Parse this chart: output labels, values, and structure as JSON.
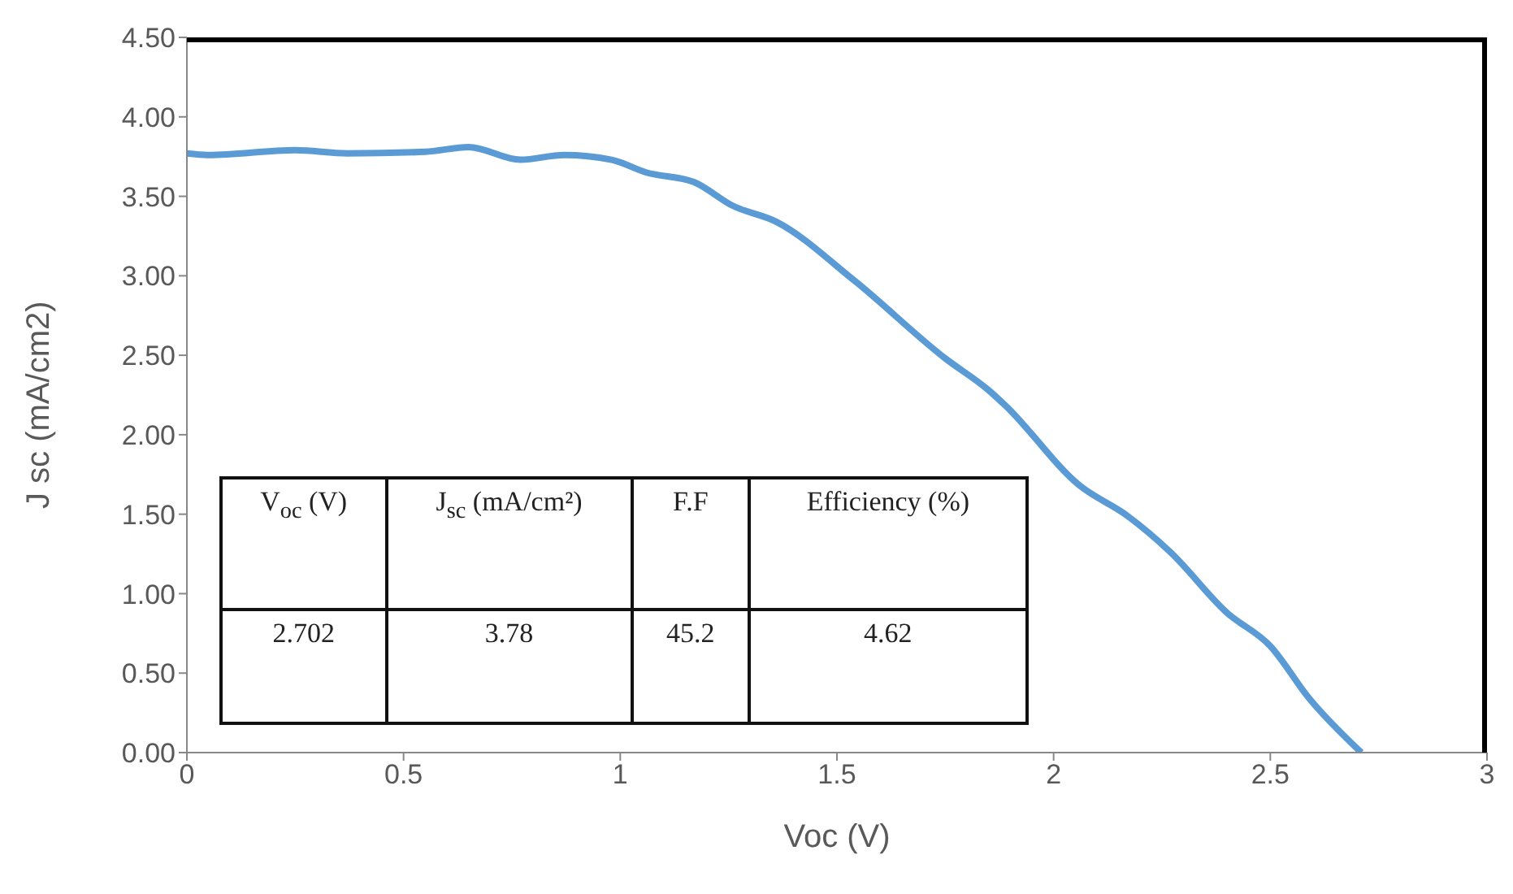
{
  "chart_data": {
    "type": "line",
    "xlabel": "Voc (V)",
    "ylabel": "J sc (mA/cm2)",
    "x": [
      0,
      0.05,
      0.25,
      0.37,
      0.55,
      0.65,
      0.77,
      0.87,
      0.98,
      1.06,
      1.17,
      1.26,
      1.36,
      1.54,
      1.75,
      1.85,
      1.89,
      2.06,
      2.17,
      2.27,
      2.4,
      2.5,
      2.59,
      2.71
    ],
    "series": [
      {
        "color": "#5b9bd5",
        "values": [
          3.77,
          3.76,
          3.79,
          3.77,
          3.78,
          3.81,
          3.73,
          3.76,
          3.73,
          3.65,
          3.59,
          3.44,
          3.34,
          2.97,
          2.48,
          2.28,
          2.18,
          1.68,
          1.49,
          1.26,
          0.88,
          0.67,
          0.34,
          0
        ]
      }
    ],
    "xlim": [
      0,
      3
    ],
    "xticks": [
      0,
      0.5,
      1,
      1.5,
      2,
      2.5,
      3
    ],
    "ylim": [
      0,
      4.5
    ],
    "yticks": [
      {
        "value": 0,
        "label": "0.00"
      },
      {
        "value": 0.5,
        "label": "0.50"
      },
      {
        "value": 1,
        "label": "1.00"
      },
      {
        "value": 1.5,
        "label": "1.50"
      },
      {
        "value": 2,
        "label": "2.00"
      },
      {
        "value": 2.5,
        "label": "2.50"
      },
      {
        "value": 3,
        "label": "3.00"
      },
      {
        "value": 3.5,
        "label": "3.50"
      },
      {
        "value": 4,
        "label": "4.00"
      },
      {
        "value": 4.5,
        "label": "4.50"
      }
    ],
    "grid": false,
    "marker": "none",
    "line_style": "solid",
    "annotations": [
      "V$_{oc}$ (V)",
      "J$_{sc}$ (mA/cm²)",
      "F.F",
      "Efficiency (%)",
      "2.702",
      "3.78",
      "45.2",
      "4.62"
    ]
  }
}
